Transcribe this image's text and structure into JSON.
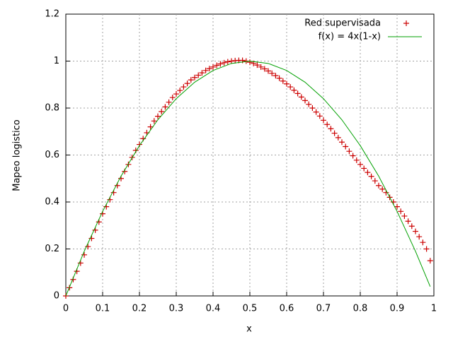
{
  "chart_data": {
    "type": "scatter",
    "xlabel": "x",
    "ylabel": "Mapeo logistico",
    "xlim": [
      0,
      1
    ],
    "ylim": [
      0,
      1.2
    ],
    "xticks": [
      0,
      0.1,
      0.2,
      0.3,
      0.4,
      0.5,
      0.6,
      0.7,
      0.8,
      0.9,
      1
    ],
    "yticks": [
      0,
      0.2,
      0.4,
      0.6,
      0.8,
      1,
      1.2
    ],
    "grid": true,
    "legend": "top-right",
    "series": [
      {
        "name": "Red supervisada",
        "color": "#cc0000",
        "style": "points",
        "x": [
          0,
          0.01,
          0.02,
          0.03,
          0.04,
          0.05,
          0.06,
          0.07,
          0.08,
          0.09,
          0.1,
          0.11,
          0.12,
          0.13,
          0.14,
          0.15,
          0.16,
          0.17,
          0.18,
          0.19,
          0.2,
          0.21,
          0.22,
          0.23,
          0.24,
          0.25,
          0.26,
          0.27,
          0.28,
          0.29,
          0.3,
          0.31,
          0.32,
          0.33,
          0.34,
          0.35,
          0.36,
          0.37,
          0.38,
          0.39,
          0.4,
          0.41,
          0.42,
          0.43,
          0.44,
          0.45,
          0.46,
          0.47,
          0.48,
          0.49,
          0.5,
          0.51,
          0.52,
          0.53,
          0.54,
          0.55,
          0.56,
          0.57,
          0.58,
          0.59,
          0.6,
          0.61,
          0.62,
          0.63,
          0.64,
          0.65,
          0.66,
          0.67,
          0.68,
          0.69,
          0.7,
          0.71,
          0.72,
          0.73,
          0.74,
          0.75,
          0.76,
          0.77,
          0.78,
          0.79,
          0.8,
          0.81,
          0.82,
          0.83,
          0.84,
          0.85,
          0.86,
          0.87,
          0.88,
          0.89,
          0.9,
          0.91,
          0.92,
          0.93,
          0.94,
          0.95,
          0.96,
          0.97,
          0.98,
          0.99
        ],
        "values": [
          0,
          0.035,
          0.07,
          0.105,
          0.14,
          0.175,
          0.21,
          0.245,
          0.28,
          0.315,
          0.35,
          0.38,
          0.41,
          0.44,
          0.47,
          0.5,
          0.53,
          0.56,
          0.59,
          0.62,
          0.645,
          0.67,
          0.695,
          0.72,
          0.745,
          0.765,
          0.785,
          0.805,
          0.825,
          0.845,
          0.86,
          0.875,
          0.89,
          0.905,
          0.92,
          0.93,
          0.94,
          0.95,
          0.96,
          0.968,
          0.975,
          0.982,
          0.988,
          0.993,
          0.997,
          1,
          1.002,
          1.003,
          1.003,
          1,
          0.995,
          0.99,
          0.983,
          0.975,
          0.967,
          0.958,
          0.948,
          0.938,
          0.927,
          0.915,
          0.903,
          0.89,
          0.876,
          0.862,
          0.847,
          0.832,
          0.816,
          0.8,
          0.783,
          0.766,
          0.748,
          0.73,
          0.712,
          0.693,
          0.674,
          0.655,
          0.636,
          0.616,
          0.597,
          0.578,
          0.56,
          0.543,
          0.526,
          0.509,
          0.49,
          0.47,
          0.455,
          0.44,
          0.42,
          0.4,
          0.38,
          0.36,
          0.34,
          0.318,
          0.297,
          0.275,
          0.252,
          0.228,
          0.2,
          0.15
        ]
      },
      {
        "name": "f(x) = 4x(1-x)",
        "color": "#00a000",
        "style": "line",
        "x": [
          0,
          0.05,
          0.1,
          0.15,
          0.2,
          0.25,
          0.3,
          0.35,
          0.4,
          0.45,
          0.5,
          0.55,
          0.6,
          0.65,
          0.7,
          0.75,
          0.8,
          0.85,
          0.9,
          0.95,
          0.99
        ],
        "values": [
          0,
          0.19,
          0.36,
          0.51,
          0.64,
          0.75,
          0.84,
          0.91,
          0.96,
          0.99,
          1,
          0.99,
          0.96,
          0.91,
          0.84,
          0.75,
          0.64,
          0.51,
          0.36,
          0.19,
          0.0396
        ]
      }
    ]
  }
}
